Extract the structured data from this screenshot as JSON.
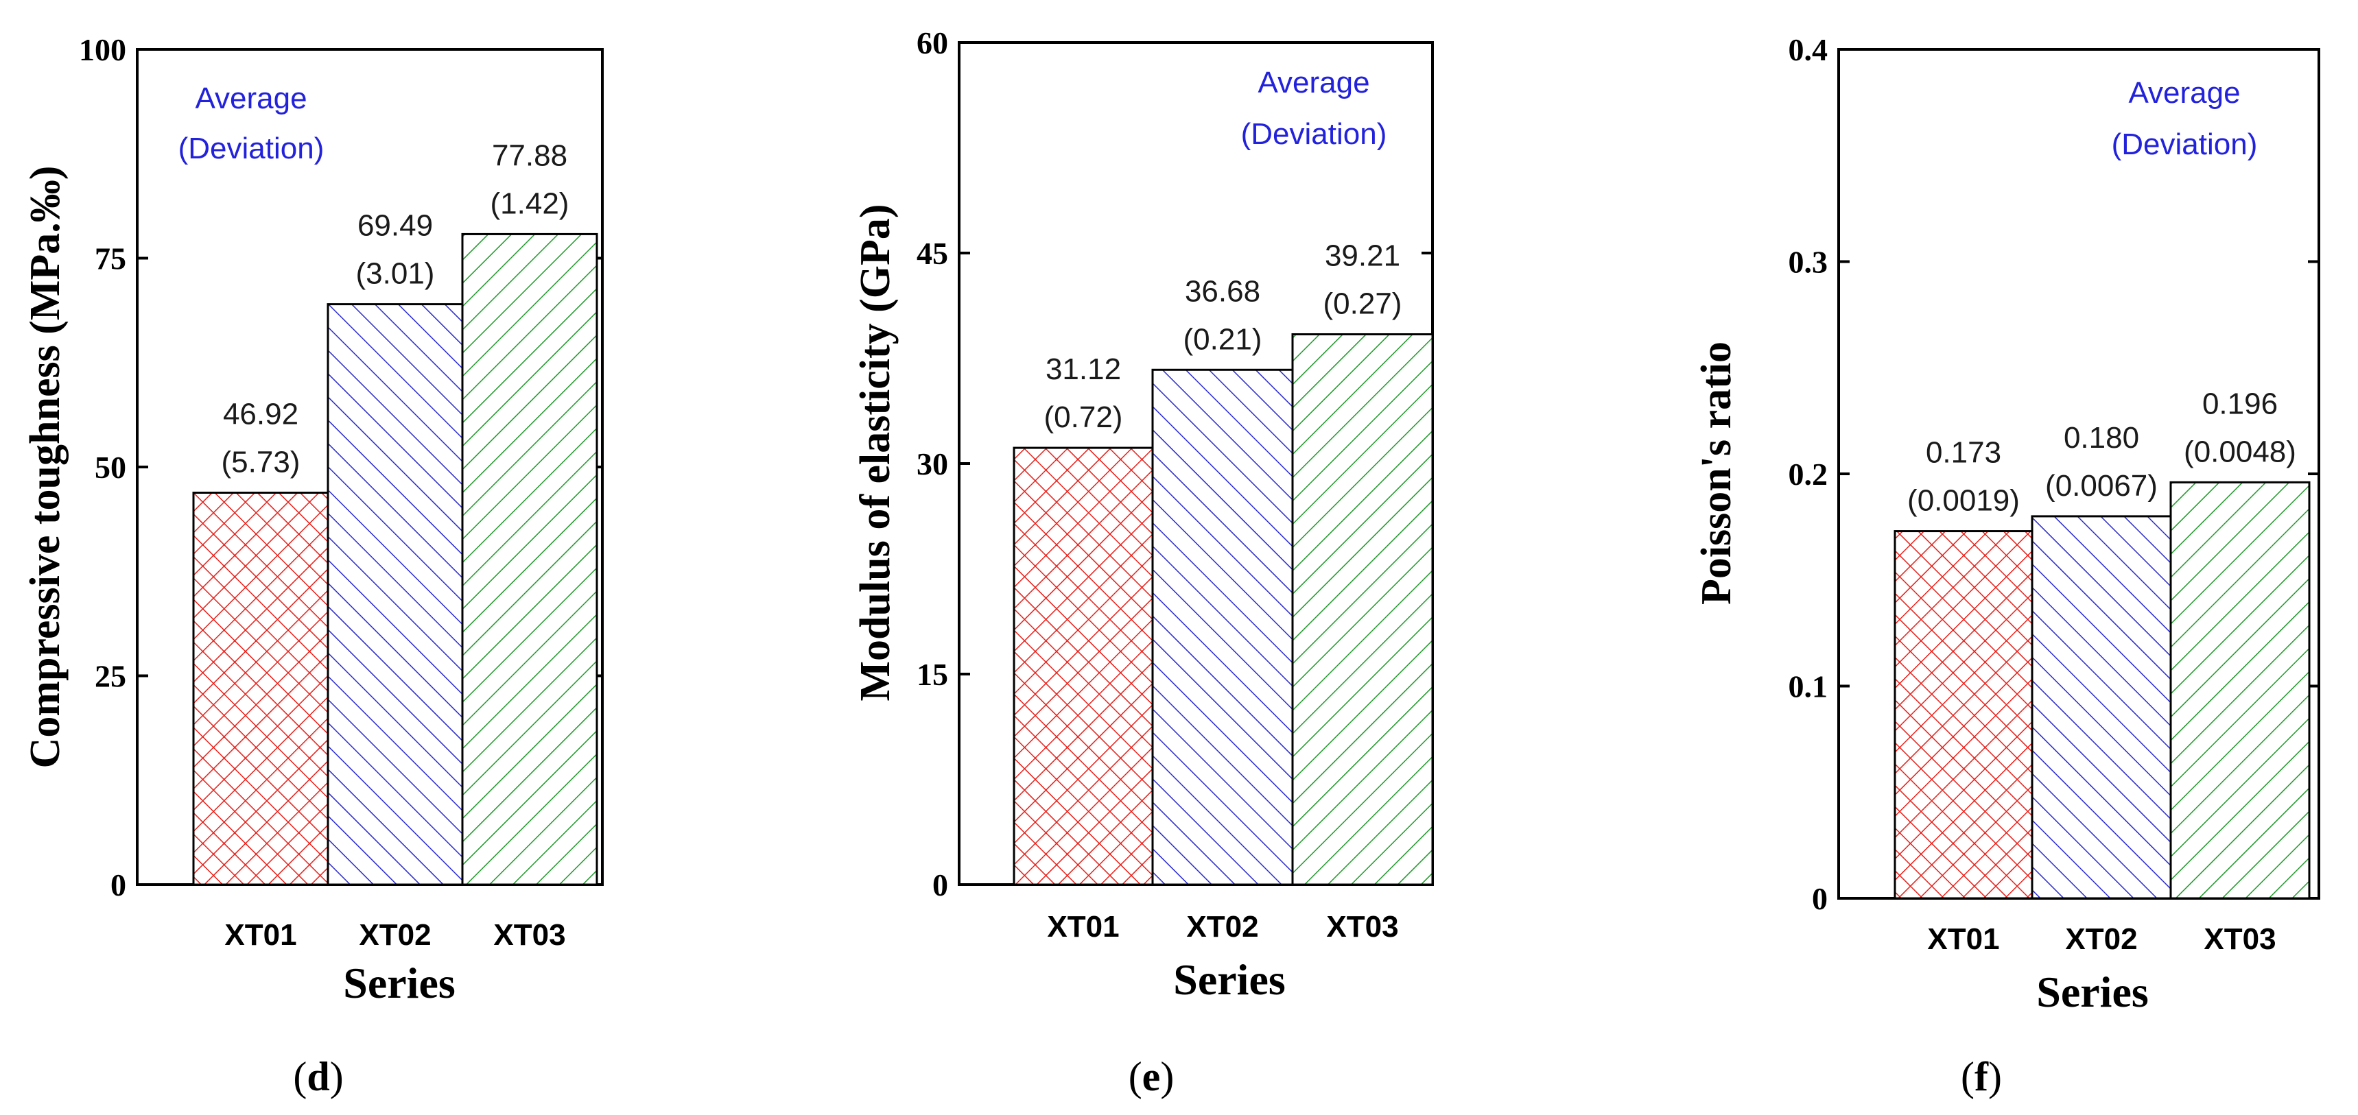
{
  "colors": {
    "XT01": "#e8201a",
    "XT02": "#2a2ad0",
    "XT03": "#1f9a2a",
    "legend": "#2222dd"
  },
  "chart_data": [
    {
      "type": "bar",
      "panel_label": "d",
      "categories": [
        "XT01",
        "XT02",
        "XT03"
      ],
      "values": [
        46.92,
        69.49,
        77.88
      ],
      "deviations": [
        "(5.73)",
        "(3.01)",
        "(1.42)"
      ],
      "value_labels": [
        "46.92",
        "69.49",
        "77.88"
      ],
      "xlabel": "Series",
      "ylabel": "Compressive toughness (MPa.‰)",
      "ylim": [
        0,
        100
      ],
      "yticks": [
        "0",
        "25",
        "50",
        "75",
        "100"
      ],
      "legend_line1": "Average",
      "legend_line2": "(Deviation)",
      "legend_position": "top-left"
    },
    {
      "type": "bar",
      "panel_label": "e",
      "categories": [
        "XT01",
        "XT02",
        "XT03"
      ],
      "values": [
        31.12,
        36.68,
        39.21
      ],
      "deviations": [
        "(0.72)",
        "(0.21)",
        "(0.27)"
      ],
      "value_labels": [
        "31.12",
        "36.68",
        "39.21"
      ],
      "xlabel": "Series",
      "ylabel": "Modulus of elasticity  (GPa)",
      "ylim": [
        0,
        60
      ],
      "yticks": [
        "0",
        "15",
        "30",
        "45",
        "60"
      ],
      "legend_line1": "Average",
      "legend_line2": "(Deviation)",
      "legend_position": "top-right"
    },
    {
      "type": "bar",
      "panel_label": "f",
      "categories": [
        "XT01",
        "XT02",
        "XT03"
      ],
      "values": [
        0.173,
        0.18,
        0.196
      ],
      "deviations": [
        "(0.0019)",
        "(0.0067)",
        "(0.0048)"
      ],
      "value_labels": [
        "0.173",
        "0.180",
        "0.196"
      ],
      "xlabel": "Series",
      "ylabel": "Poisson's ratio",
      "ylim": [
        0,
        0.4
      ],
      "yticks": [
        "0",
        "0.1",
        "0.2",
        "0.3",
        "0.4"
      ],
      "legend_line1": "Average",
      "legend_line2": "(Deviation)",
      "legend_position": "top-right"
    }
  ]
}
